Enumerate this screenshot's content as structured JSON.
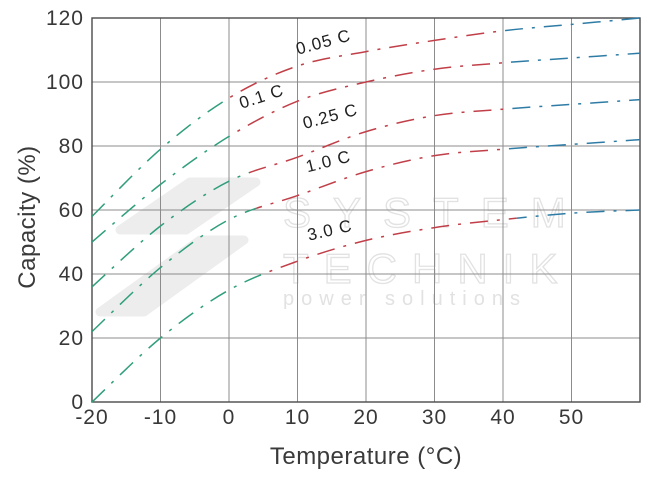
{
  "watermark": {
    "line1": "SYSTEM",
    "line2": "TECHNIK",
    "line3": "power solutions"
  },
  "colors": {
    "cold_segment": "#2f9e7c",
    "mid_segment": "#c13f48",
    "hot_segment": "#2e7ca6",
    "grid": "#8c8c8c",
    "border": "#4a4a4a",
    "tick_text": "#383838",
    "curve_label_text": "#1f1f1f",
    "watermark_stroke": "#e2e2e2",
    "watermark_fill": "#ededed"
  },
  "chart_data": {
    "type": "line",
    "title": "",
    "xlabel": "Temperature (°C)",
    "ylabel": "Capacity (%)",
    "xlim": [
      -20,
      60
    ],
    "ylim": [
      0,
      120
    ],
    "x_ticks": [
      -20,
      -10,
      0,
      10,
      20,
      30,
      40,
      50
    ],
    "y_ticks": [
      0,
      20,
      40,
      60,
      80,
      100,
      120
    ],
    "grid": true,
    "legend": "inline-curve-labels",
    "line_style": "dash-dot",
    "x": [
      -20,
      -10,
      0,
      10,
      20,
      30,
      40,
      50,
      60
    ],
    "series": [
      {
        "name": "0.05 C",
        "values": [
          58,
          79,
          95,
          105,
          109.5,
          113,
          116,
          118,
          120
        ],
        "cold_until": 0,
        "hot_from": 40,
        "label_at": {
          "t": 14,
          "c": 110.8,
          "angle": -15
        }
      },
      {
        "name": "0.1 C",
        "values": [
          50,
          68,
          83,
          94,
          100,
          104,
          106,
          107.5,
          109
        ],
        "cold_until": 1,
        "hot_from": 40,
        "label_at": {
          "t": 5,
          "c": 93.8,
          "angle": -18
        }
      },
      {
        "name": "0.25 C",
        "values": [
          36,
          55,
          69,
          76.5,
          84.5,
          89.5,
          91.5,
          93,
          94.5
        ],
        "cold_until": 3,
        "hot_from": 40,
        "label_at": {
          "t": 15,
          "c": 87.6,
          "angle": -15
        }
      },
      {
        "name": "1.0 C",
        "values": [
          22,
          42,
          57,
          64.5,
          72,
          77,
          79,
          80.5,
          82
        ],
        "cold_until": 4,
        "hot_from": 40,
        "label_at": {
          "t": 14.7,
          "c": 73.5,
          "angle": -14
        }
      },
      {
        "name": "3.0 C",
        "values": [
          0,
          20,
          35,
          44,
          50.5,
          54.5,
          57,
          59,
          60
        ],
        "cold_until": 5,
        "hot_from": 42,
        "label_at": {
          "t": 14.9,
          "c": 52,
          "angle": -13
        }
      }
    ]
  }
}
